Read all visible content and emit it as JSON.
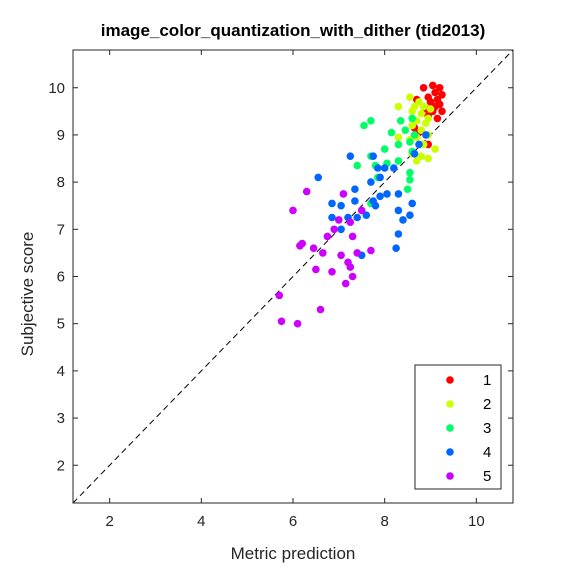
{
  "chart_data": {
    "type": "scatter",
    "title": "image_color_quantization_with_dither (tid2013)",
    "xlabel": "Metric prediction",
    "ylabel": "Subjective score",
    "xlim": [
      1.2,
      10.8
    ],
    "ylim": [
      1.2,
      10.8
    ],
    "xticks": [
      2,
      4,
      6,
      8,
      10
    ],
    "yticks": [
      2,
      3,
      4,
      5,
      6,
      7,
      8,
      9,
      10
    ],
    "grid": false,
    "reference_line": "y = x (dashed)",
    "legend_position": "bottom-right",
    "series": [
      {
        "name": "1",
        "color": "#ff0000",
        "points": [
          [
            8.85,
            10.0
          ],
          [
            9.05,
            10.05
          ],
          [
            9.2,
            10.0
          ],
          [
            9.1,
            9.9
          ],
          [
            9.25,
            9.85
          ],
          [
            8.95,
            9.8
          ],
          [
            9.15,
            9.75
          ],
          [
            8.7,
            9.75
          ],
          [
            9.0,
            9.7
          ],
          [
            9.2,
            9.65
          ],
          [
            9.1,
            9.6
          ],
          [
            8.9,
            9.55
          ],
          [
            9.25,
            9.5
          ],
          [
            9.05,
            9.5
          ],
          [
            8.95,
            9.4
          ],
          [
            9.15,
            9.35
          ],
          [
            8.65,
            9.15
          ],
          [
            8.75,
            9.05
          ],
          [
            8.95,
            8.8
          ]
        ]
      },
      {
        "name": "2",
        "color": "#ccff00",
        "points": [
          [
            8.55,
            9.8
          ],
          [
            8.75,
            9.7
          ],
          [
            8.65,
            9.6
          ],
          [
            8.3,
            9.6
          ],
          [
            8.85,
            9.6
          ],
          [
            8.6,
            9.5
          ],
          [
            9.0,
            9.55
          ],
          [
            8.8,
            9.45
          ],
          [
            8.95,
            9.35
          ],
          [
            8.7,
            9.3
          ],
          [
            8.9,
            9.25
          ],
          [
            8.6,
            9.2
          ],
          [
            8.8,
            9.1
          ],
          [
            8.95,
            9.0
          ],
          [
            8.7,
            8.95
          ],
          [
            8.3,
            8.95
          ],
          [
            8.55,
            8.9
          ],
          [
            8.85,
            8.8
          ],
          [
            9.1,
            8.7
          ],
          [
            8.6,
            8.6
          ],
          [
            8.8,
            8.55
          ],
          [
            8.95,
            8.5
          ],
          [
            8.7,
            8.45
          ]
        ]
      },
      {
        "name": "3",
        "color": "#00ff66",
        "points": [
          [
            7.55,
            9.2
          ],
          [
            7.7,
            9.3
          ],
          [
            8.35,
            9.3
          ],
          [
            8.6,
            9.35
          ],
          [
            8.45,
            9.1
          ],
          [
            8.15,
            9.05
          ],
          [
            8.65,
            9.0
          ],
          [
            8.55,
            8.85
          ],
          [
            8.3,
            8.8
          ],
          [
            8.0,
            8.7
          ],
          [
            8.6,
            8.65
          ],
          [
            7.7,
            8.55
          ],
          [
            8.3,
            8.45
          ],
          [
            8.05,
            8.4
          ],
          [
            7.4,
            8.35
          ],
          [
            7.8,
            8.35
          ],
          [
            8.55,
            8.2
          ],
          [
            7.85,
            8.1
          ],
          [
            8.55,
            8.05
          ],
          [
            8.5,
            7.85
          ],
          [
            7.7,
            7.55
          ]
        ]
      },
      {
        "name": "4",
        "color": "#0066ff",
        "points": [
          [
            8.75,
            8.8
          ],
          [
            8.9,
            9.0
          ],
          [
            8.65,
            8.6
          ],
          [
            7.25,
            8.55
          ],
          [
            7.75,
            8.55
          ],
          [
            8.0,
            8.3
          ],
          [
            7.85,
            8.3
          ],
          [
            8.2,
            8.3
          ],
          [
            6.55,
            8.1
          ],
          [
            7.9,
            8.1
          ],
          [
            7.7,
            8.0
          ],
          [
            7.35,
            7.85
          ],
          [
            8.05,
            7.75
          ],
          [
            8.3,
            7.75
          ],
          [
            7.9,
            7.7
          ],
          [
            7.75,
            7.6
          ],
          [
            7.8,
            7.5
          ],
          [
            7.35,
            7.6
          ],
          [
            8.6,
            7.55
          ],
          [
            6.85,
            7.55
          ],
          [
            7.05,
            7.5
          ],
          [
            8.3,
            7.4
          ],
          [
            8.55,
            7.3
          ],
          [
            7.6,
            7.3
          ],
          [
            6.85,
            7.25
          ],
          [
            7.2,
            7.25
          ],
          [
            7.4,
            7.25
          ],
          [
            8.4,
            7.2
          ],
          [
            7.05,
            7.0
          ],
          [
            8.3,
            6.9
          ],
          [
            8.25,
            6.6
          ],
          [
            7.5,
            6.45
          ]
        ]
      },
      {
        "name": "5",
        "color": "#cc00ff",
        "points": [
          [
            6.3,
            7.8
          ],
          [
            7.1,
            7.75
          ],
          [
            6.0,
            7.4
          ],
          [
            7.5,
            7.4
          ],
          [
            7.0,
            7.2
          ],
          [
            7.25,
            7.15
          ],
          [
            6.9,
            7.0
          ],
          [
            6.75,
            6.85
          ],
          [
            7.3,
            6.85
          ],
          [
            6.2,
            6.7
          ],
          [
            6.15,
            6.65
          ],
          [
            6.45,
            6.6
          ],
          [
            7.7,
            6.55
          ],
          [
            6.65,
            6.5
          ],
          [
            7.4,
            6.5
          ],
          [
            7.05,
            6.45
          ],
          [
            7.2,
            6.3
          ],
          [
            7.25,
            6.2
          ],
          [
            6.5,
            6.15
          ],
          [
            6.85,
            6.1
          ],
          [
            7.3,
            6.0
          ],
          [
            7.15,
            5.85
          ],
          [
            5.7,
            5.6
          ],
          [
            6.6,
            5.3
          ],
          [
            5.75,
            5.05
          ],
          [
            6.1,
            5.0
          ]
        ]
      }
    ]
  }
}
